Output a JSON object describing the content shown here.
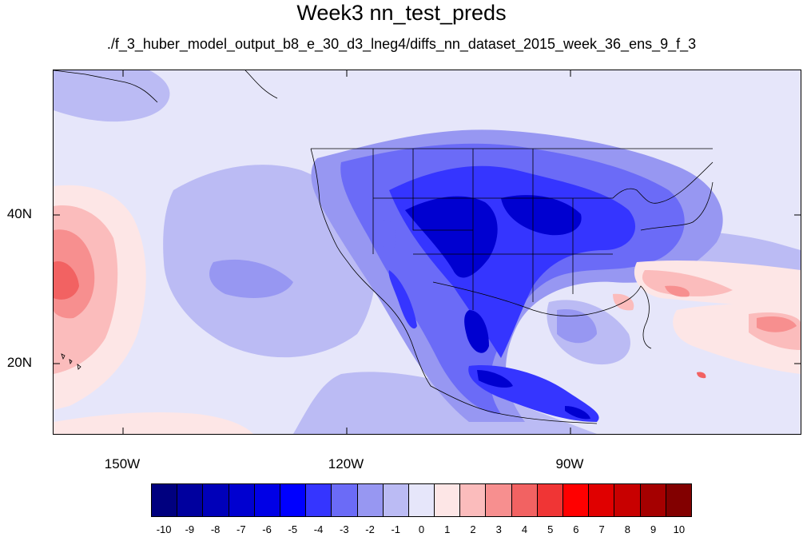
{
  "title": "Week3 nn_test_preds",
  "subtitle": "./f_3_huber_model_output_b8_e_30_d3_lneg4/diffs_nn_dataset_2015_week_36_ens_9_f_3",
  "map": {
    "lon_range": [
      -159,
      -59
    ],
    "lat_range": [
      11,
      60
    ],
    "lat_labels": [
      "40N",
      "20N"
    ],
    "lon_labels": [
      "150W",
      "120W",
      "90W"
    ]
  },
  "colorbar": {
    "labels": [
      "-10",
      "-9",
      "-8",
      "-7",
      "-6",
      "-5",
      "-4",
      "-3",
      "-2",
      "-1",
      "0",
      "1",
      "2",
      "3",
      "4",
      "5",
      "6",
      "7",
      "8",
      "9",
      "10"
    ],
    "colors": [
      "#00007f",
      "#00009e",
      "#0000b9",
      "#0000d0",
      "#0000e6",
      "#0000ff",
      "#3535ff",
      "#6b6bf7",
      "#9797f2",
      "#bbbbf4",
      "#e6e6fa",
      "#fde6e6",
      "#fbbcbc",
      "#f78f8f",
      "#f26262",
      "#f03535",
      "#ff0000",
      "#e00000",
      "#c80000",
      "#a50000",
      "#820000"
    ]
  }
}
